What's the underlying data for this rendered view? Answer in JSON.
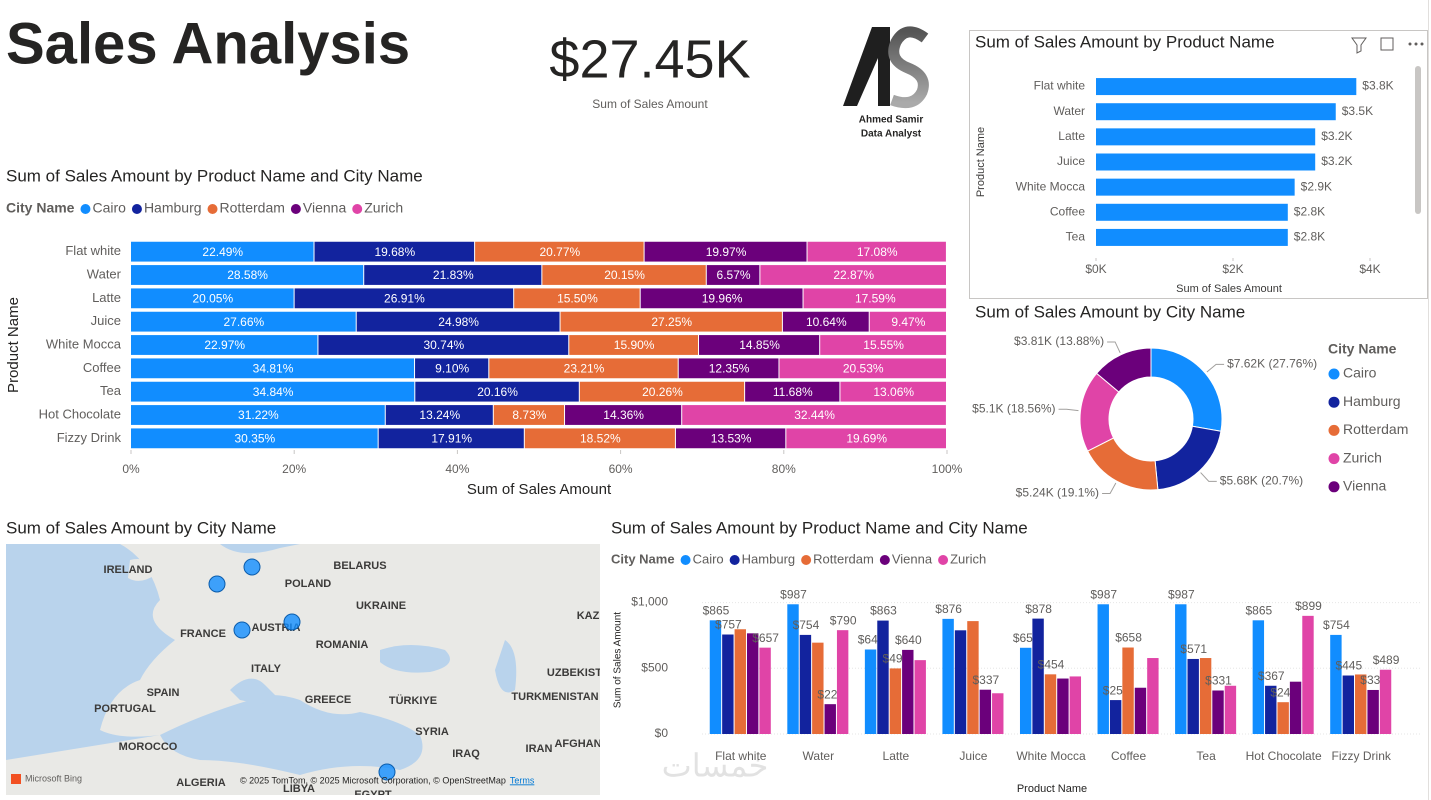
{
  "header": {
    "title": "Sales Analysis"
  },
  "kpi": {
    "value": "$27.45K",
    "label": "Sum of Sales Amount"
  },
  "logo": {
    "name": "Ahmed Samir",
    "role": "Data Analyst"
  },
  "watermark": "خمسات",
  "map": {
    "title": "Sum of Sales Amount by City Name",
    "labels": [
      "IRELAND",
      "BELARUS",
      "POLAND",
      "UKRAINE",
      "FRANCE",
      "AUSTRIA",
      "ROMANIA",
      "ITALY",
      "SPAIN",
      "PORTUGAL",
      "GREECE",
      "TÜRKIYE",
      "MOROCCO",
      "ALGERIA",
      "LIBYA",
      "EGYPT",
      "SYRIA",
      "IRAQ",
      "IRAN",
      "AFGHAN",
      "TURKMENISTAN",
      "UZBEKISTA",
      "KAZ"
    ],
    "brand": "Microsoft Bing",
    "attribution": "© 2025 TomTom, © 2025 Microsoft Corporation, © OpenStreetMap",
    "terms": "Terms"
  },
  "chart_data": [
    {
      "type": "stackedbar",
      "title": "Sum of Sales Amount by Product Name and City Name",
      "legend_title": "City Name",
      "x_label": "Sum of Sales Amount",
      "y_label": "Product Name",
      "categories": [
        "Flat white",
        "Water",
        "Latte",
        "Juice",
        "White Mocca",
        "Coffee",
        "Tea",
        "Hot Chocolate",
        "Fizzy Drink"
      ],
      "xlim": [
        0,
        100
      ],
      "xticks": [
        {
          "value": 0,
          "label": "0%"
        },
        {
          "value": 20,
          "label": "20%"
        },
        {
          "value": 40,
          "label": "40%"
        },
        {
          "value": 60,
          "label": "60%"
        },
        {
          "value": 80,
          "label": "80%"
        },
        {
          "value": 100,
          "label": "100%"
        }
      ],
      "series": [
        {
          "name": "Cairo",
          "color": "#118DFF",
          "values": [
            22.49,
            28.58,
            20.05,
            27.66,
            22.97,
            34.81,
            34.84,
            31.22,
            30.35
          ],
          "value_labels": [
            "22.49%",
            "28.58%",
            "20.05%",
            "27.66%",
            "22.97%",
            "34.81%",
            "34.84%",
            "31.22%",
            "30.35%"
          ]
        },
        {
          "name": "Hamburg",
          "color": "#12239E",
          "values": [
            19.68,
            21.83,
            26.91,
            24.98,
            30.74,
            9.1,
            20.16,
            13.24,
            17.91
          ],
          "value_labels": [
            "19.68%",
            "21.83%",
            "26.91%",
            "24.98%",
            "30.74%",
            "9.10%",
            "20.16%",
            "13.24%",
            "17.91%"
          ]
        },
        {
          "name": "Rotterdam",
          "color": "#E66C37",
          "values": [
            20.77,
            20.15,
            15.5,
            27.25,
            15.9,
            23.21,
            20.26,
            8.73,
            18.52
          ],
          "value_labels": [
            "20.77%",
            "20.15%",
            "15.50%",
            "27.25%",
            "15.90%",
            "23.21%",
            "20.26%",
            "8.73%",
            "18.52%"
          ]
        },
        {
          "name": "Vienna",
          "color": "#6B007B",
          "values": [
            19.97,
            6.57,
            19.96,
            10.64,
            14.85,
            12.35,
            11.68,
            14.36,
            13.53
          ],
          "value_labels": [
            "19.97%",
            "6.57%",
            "19.96%",
            "10.64%",
            "14.85%",
            "12.35%",
            "11.68%",
            "14.36%",
            "13.53%"
          ]
        },
        {
          "name": "Zurich",
          "color": "#E044A7",
          "values": [
            17.08,
            22.87,
            17.59,
            9.47,
            15.55,
            20.53,
            13.06,
            32.44,
            19.69
          ],
          "value_labels": [
            "17.08%",
            "22.87%",
            "17.59%",
            "9.47%",
            "15.55%",
            "20.53%",
            "13.06%",
            "32.44%",
            "19.69%"
          ]
        }
      ]
    },
    {
      "type": "hbar",
      "title": "Sum of Sales Amount by Product Name",
      "x_label": "Sum of Sales Amount",
      "y_label": "Product Name",
      "color": "#118DFF",
      "categories": [
        "Flat white",
        "Water",
        "Latte",
        "Juice",
        "White Mocca",
        "Coffee",
        "Tea"
      ],
      "values": [
        3800,
        3500,
        3200,
        3200,
        2900,
        2800,
        2800
      ],
      "value_labels": [
        "$3.8K",
        "$3.5K",
        "$3.2K",
        "$3.2K",
        "$2.9K",
        "$2.8K",
        "$2.8K"
      ],
      "xlim": [
        0,
        4000
      ],
      "xticks": [
        {
          "value": 0,
          "label": "$0K"
        },
        {
          "value": 2000,
          "label": "$2K"
        },
        {
          "value": 4000,
          "label": "$4K"
        }
      ]
    },
    {
      "type": "donut",
      "title": "Sum of Sales Amount by City Name",
      "legend_title": "City Name",
      "categories": [
        "Cairo",
        "Hamburg",
        "Rotterdam",
        "Zurich",
        "Vienna"
      ],
      "colors": [
        "#118DFF",
        "#12239E",
        "#E66C37",
        "#E044A7",
        "#6B007B"
      ],
      "values": [
        7620,
        5680,
        5240,
        5100,
        3810
      ],
      "value_labels": [
        "$7.62K (27.76%)",
        "$5.68K (20.7%)",
        "$5.24K (19.1%)",
        "$5.1K (18.56%)",
        "$3.81K (13.88%)"
      ]
    },
    {
      "type": "column",
      "title": "Sum of Sales Amount by Product Name and City Name",
      "legend_title": "City Name",
      "x_label": "Product Name",
      "y_label": "Sum of Sales Amount",
      "grid": true,
      "categories": [
        "Flat white",
        "Water",
        "Latte",
        "Juice",
        "White Mocca",
        "Coffee",
        "Tea",
        "Hot Chocolate",
        "Fizzy Drink"
      ],
      "ylim": [
        0,
        1050
      ],
      "yticks": [
        {
          "value": 0,
          "label": "$0"
        },
        {
          "value": 500,
          "label": "$500"
        },
        {
          "value": 1000,
          "label": "$1,000"
        }
      ],
      "series": [
        {
          "name": "Cairo",
          "color": "#118DFF",
          "values": [
            865,
            987,
            643,
            876,
            656,
            987,
            987,
            865,
            754
          ],
          "value_labels": [
            "$865",
            "$987",
            "$643",
            "$876",
            "$656",
            "$987",
            "$987",
            "$865",
            "$754"
          ]
        },
        {
          "name": "Hamburg",
          "color": "#12239E",
          "values": [
            757,
            754,
            863,
            789,
            878,
            258,
            571,
            367,
            445
          ],
          "value_labels": [
            "$757",
            "$754",
            "$863",
            null,
            "$878",
            "$258",
            "$571",
            "$367",
            "$445"
          ]
        },
        {
          "name": "Rotterdam",
          "color": "#E66C37",
          "values": [
            797,
            695,
            499,
            859,
            454,
            658,
            578,
            242,
            453
          ],
          "value_labels": [
            null,
            null,
            "$499",
            null,
            "$454",
            "$658",
            null,
            "$242",
            null
          ]
        },
        {
          "name": "Vienna",
          "color": "#6B007B",
          "values": [
            766,
            227,
            640,
            337,
            422,
            352,
            331,
            398,
            335
          ],
          "value_labels": [
            null,
            "$227",
            "$640",
            "$337",
            null,
            null,
            "$331",
            null,
            "$335"
          ]
        },
        {
          "name": "Zurich",
          "color": "#E044A7",
          "values": [
            657,
            790,
            562,
            310,
            438,
            578,
            367,
            899,
            489
          ],
          "value_labels": [
            "$657",
            "$790",
            null,
            null,
            null,
            null,
            null,
            "$899",
            "$489"
          ]
        }
      ]
    }
  ]
}
